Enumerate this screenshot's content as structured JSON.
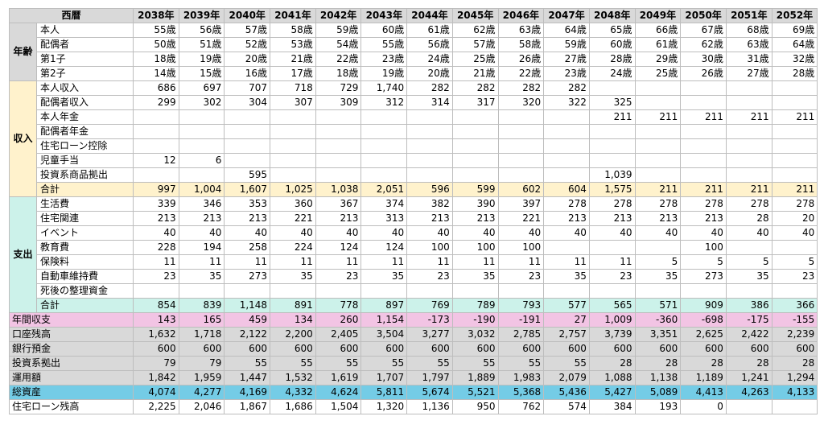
{
  "header": {
    "label": "西暦",
    "years": [
      "2038年",
      "2039年",
      "2040年",
      "2041年",
      "2042年",
      "2043年",
      "2044年",
      "2045年",
      "2046年",
      "2047年",
      "2048年",
      "2049年",
      "2050年",
      "2051年",
      "2052年"
    ]
  },
  "colors": {
    "age_bg": "#d9d9d9",
    "income_bg": "#fff2cc",
    "expense_bg": "#ccf2ea",
    "balance_bg": "#f2c4e4",
    "asset_rows_bg": "#d9d9d9",
    "total_assets_bg": "#74cce6"
  },
  "sections": [
    {
      "id": "age",
      "group": "年齢",
      "bg": "age",
      "rows": [
        {
          "label": "本人",
          "values": [
            "55歳",
            "56歳",
            "57歳",
            "58歳",
            "59歳",
            "60歳",
            "61歳",
            "62歳",
            "63歳",
            "64歳",
            "65歳",
            "66歳",
            "67歳",
            "68歳",
            "69歳"
          ]
        },
        {
          "label": "配偶者",
          "values": [
            "50歳",
            "51歳",
            "52歳",
            "53歳",
            "54歳",
            "55歳",
            "56歳",
            "57歳",
            "58歳",
            "59歳",
            "60歳",
            "61歳",
            "62歳",
            "63歳",
            "64歳"
          ]
        },
        {
          "label": "第1子",
          "values": [
            "18歳",
            "19歳",
            "20歳",
            "21歳",
            "22歳",
            "23歳",
            "24歳",
            "25歳",
            "26歳",
            "27歳",
            "28歳",
            "29歳",
            "30歳",
            "31歳",
            "32歳"
          ]
        },
        {
          "label": "第2子",
          "values": [
            "14歳",
            "15歳",
            "16歳",
            "17歳",
            "18歳",
            "19歳",
            "20歳",
            "21歳",
            "22歳",
            "23歳",
            "24歳",
            "25歳",
            "26歳",
            "27歳",
            "28歳"
          ]
        }
      ]
    },
    {
      "id": "income",
      "group": "収入",
      "bg": "inc",
      "rows": [
        {
          "label": "本人収入",
          "values": [
            "686",
            "697",
            "707",
            "718",
            "729",
            "1,740",
            "282",
            "282",
            "282",
            "282",
            "",
            "",
            "",
            "",
            ""
          ]
        },
        {
          "label": "配偶者収入",
          "values": [
            "299",
            "302",
            "304",
            "307",
            "309",
            "312",
            "314",
            "317",
            "320",
            "322",
            "325",
            "",
            "",
            "",
            ""
          ]
        },
        {
          "label": "本人年金",
          "values": [
            "",
            "",
            "",
            "",
            "",
            "",
            "",
            "",
            "",
            "",
            "211",
            "211",
            "211",
            "211",
            "211"
          ]
        },
        {
          "label": "配偶者年金",
          "values": [
            "",
            "",
            "",
            "",
            "",
            "",
            "",
            "",
            "",
            "",
            "",
            "",
            "",
            "",
            ""
          ]
        },
        {
          "label": "住宅ローン控除",
          "values": [
            "",
            "",
            "",
            "",
            "",
            "",
            "",
            "",
            "",
            "",
            "",
            "",
            "",
            "",
            ""
          ]
        },
        {
          "label": "児童手当",
          "values": [
            "12",
            "6",
            "",
            "",
            "",
            "",
            "",
            "",
            "",
            "",
            "",
            "",
            "",
            "",
            ""
          ]
        },
        {
          "label": "投資系商品拠出",
          "values": [
            "",
            "",
            "595",
            "",
            "",
            "",
            "",
            "",
            "",
            "",
            "1,039",
            "",
            "",
            "",
            ""
          ]
        },
        {
          "label": "合計",
          "values": [
            "997",
            "1,004",
            "1,607",
            "1,025",
            "1,038",
            "2,051",
            "596",
            "599",
            "602",
            "604",
            "1,575",
            "211",
            "211",
            "211",
            "211"
          ],
          "highlight": true
        }
      ]
    },
    {
      "id": "expense",
      "group": "支出",
      "bg": "exp",
      "rows": [
        {
          "label": "生活費",
          "values": [
            "339",
            "346",
            "353",
            "360",
            "367",
            "374",
            "382",
            "390",
            "397",
            "278",
            "278",
            "278",
            "278",
            "278",
            "278"
          ]
        },
        {
          "label": "住宅関連",
          "values": [
            "213",
            "213",
            "213",
            "221",
            "213",
            "313",
            "213",
            "213",
            "221",
            "213",
            "213",
            "213",
            "213",
            "28",
            "20"
          ]
        },
        {
          "label": "イベント",
          "values": [
            "40",
            "40",
            "40",
            "40",
            "40",
            "40",
            "40",
            "40",
            "40",
            "40",
            "40",
            "40",
            "40",
            "40",
            "40"
          ]
        },
        {
          "label": "教育費",
          "values": [
            "228",
            "194",
            "258",
            "224",
            "124",
            "124",
            "100",
            "100",
            "100",
            "",
            "",
            "",
            "100",
            "",
            ""
          ]
        },
        {
          "label": "保険料",
          "values": [
            "11",
            "11",
            "11",
            "11",
            "11",
            "11",
            "11",
            "11",
            "11",
            "11",
            "11",
            "5",
            "5",
            "5",
            "5"
          ]
        },
        {
          "label": "自動車維持費",
          "values": [
            "23",
            "35",
            "273",
            "35",
            "23",
            "35",
            "23",
            "35",
            "23",
            "35",
            "23",
            "35",
            "273",
            "35",
            "23"
          ]
        },
        {
          "label": "死後の整理資金",
          "values": [
            "",
            "",
            "",
            "",
            "",
            "",
            "",
            "",
            "",
            "",
            "",
            "",
            "",
            "",
            ""
          ]
        },
        {
          "label": "合計",
          "values": [
            "854",
            "839",
            "1,148",
            "891",
            "778",
            "897",
            "769",
            "789",
            "793",
            "577",
            "565",
            "571",
            "909",
            "386",
            "366"
          ],
          "highlight": true
        }
      ]
    }
  ],
  "summary_rows": [
    {
      "label": "年間収支",
      "bg": "bal",
      "values": [
        "143",
        "165",
        "459",
        "134",
        "260",
        "1,154",
        "-173",
        "-190",
        "-191",
        "27",
        "1,009",
        "-360",
        "-698",
        "-175",
        "-155"
      ]
    },
    {
      "label": "口座残高",
      "bg": "grey",
      "values": [
        "1,632",
        "1,718",
        "2,122",
        "2,200",
        "2,405",
        "3,504",
        "3,277",
        "3,032",
        "2,785",
        "2,757",
        "3,739",
        "3,351",
        "2,625",
        "2,422",
        "2,239"
      ]
    },
    {
      "label": "銀行預金",
      "bg": "grey",
      "values": [
        "600",
        "600",
        "600",
        "600",
        "600",
        "600",
        "600",
        "600",
        "600",
        "600",
        "600",
        "600",
        "600",
        "600",
        "600"
      ]
    },
    {
      "label": "投資系拠出",
      "bg": "grey",
      "values": [
        "79",
        "79",
        "55",
        "55",
        "55",
        "55",
        "55",
        "55",
        "55",
        "55",
        "28",
        "28",
        "28",
        "28",
        "28"
      ]
    },
    {
      "label": "運用額",
      "bg": "grey",
      "values": [
        "1,842",
        "1,959",
        "1,447",
        "1,532",
        "1,619",
        "1,707",
        "1,797",
        "1,889",
        "1,983",
        "2,079",
        "1,088",
        "1,138",
        "1,189",
        "1,241",
        "1,294"
      ]
    },
    {
      "label": "総資産",
      "bg": "total",
      "values": [
        "4,074",
        "4,277",
        "4,169",
        "4,332",
        "4,624",
        "5,811",
        "5,674",
        "5,521",
        "5,368",
        "5,436",
        "5,427",
        "5,089",
        "4,413",
        "4,263",
        "4,133"
      ]
    },
    {
      "label": "住宅ローン残高",
      "bg": "none",
      "values": [
        "2,225",
        "2,046",
        "1,867",
        "1,686",
        "1,504",
        "1,320",
        "1,136",
        "950",
        "762",
        "574",
        "384",
        "193",
        "0",
        "",
        ""
      ]
    }
  ]
}
